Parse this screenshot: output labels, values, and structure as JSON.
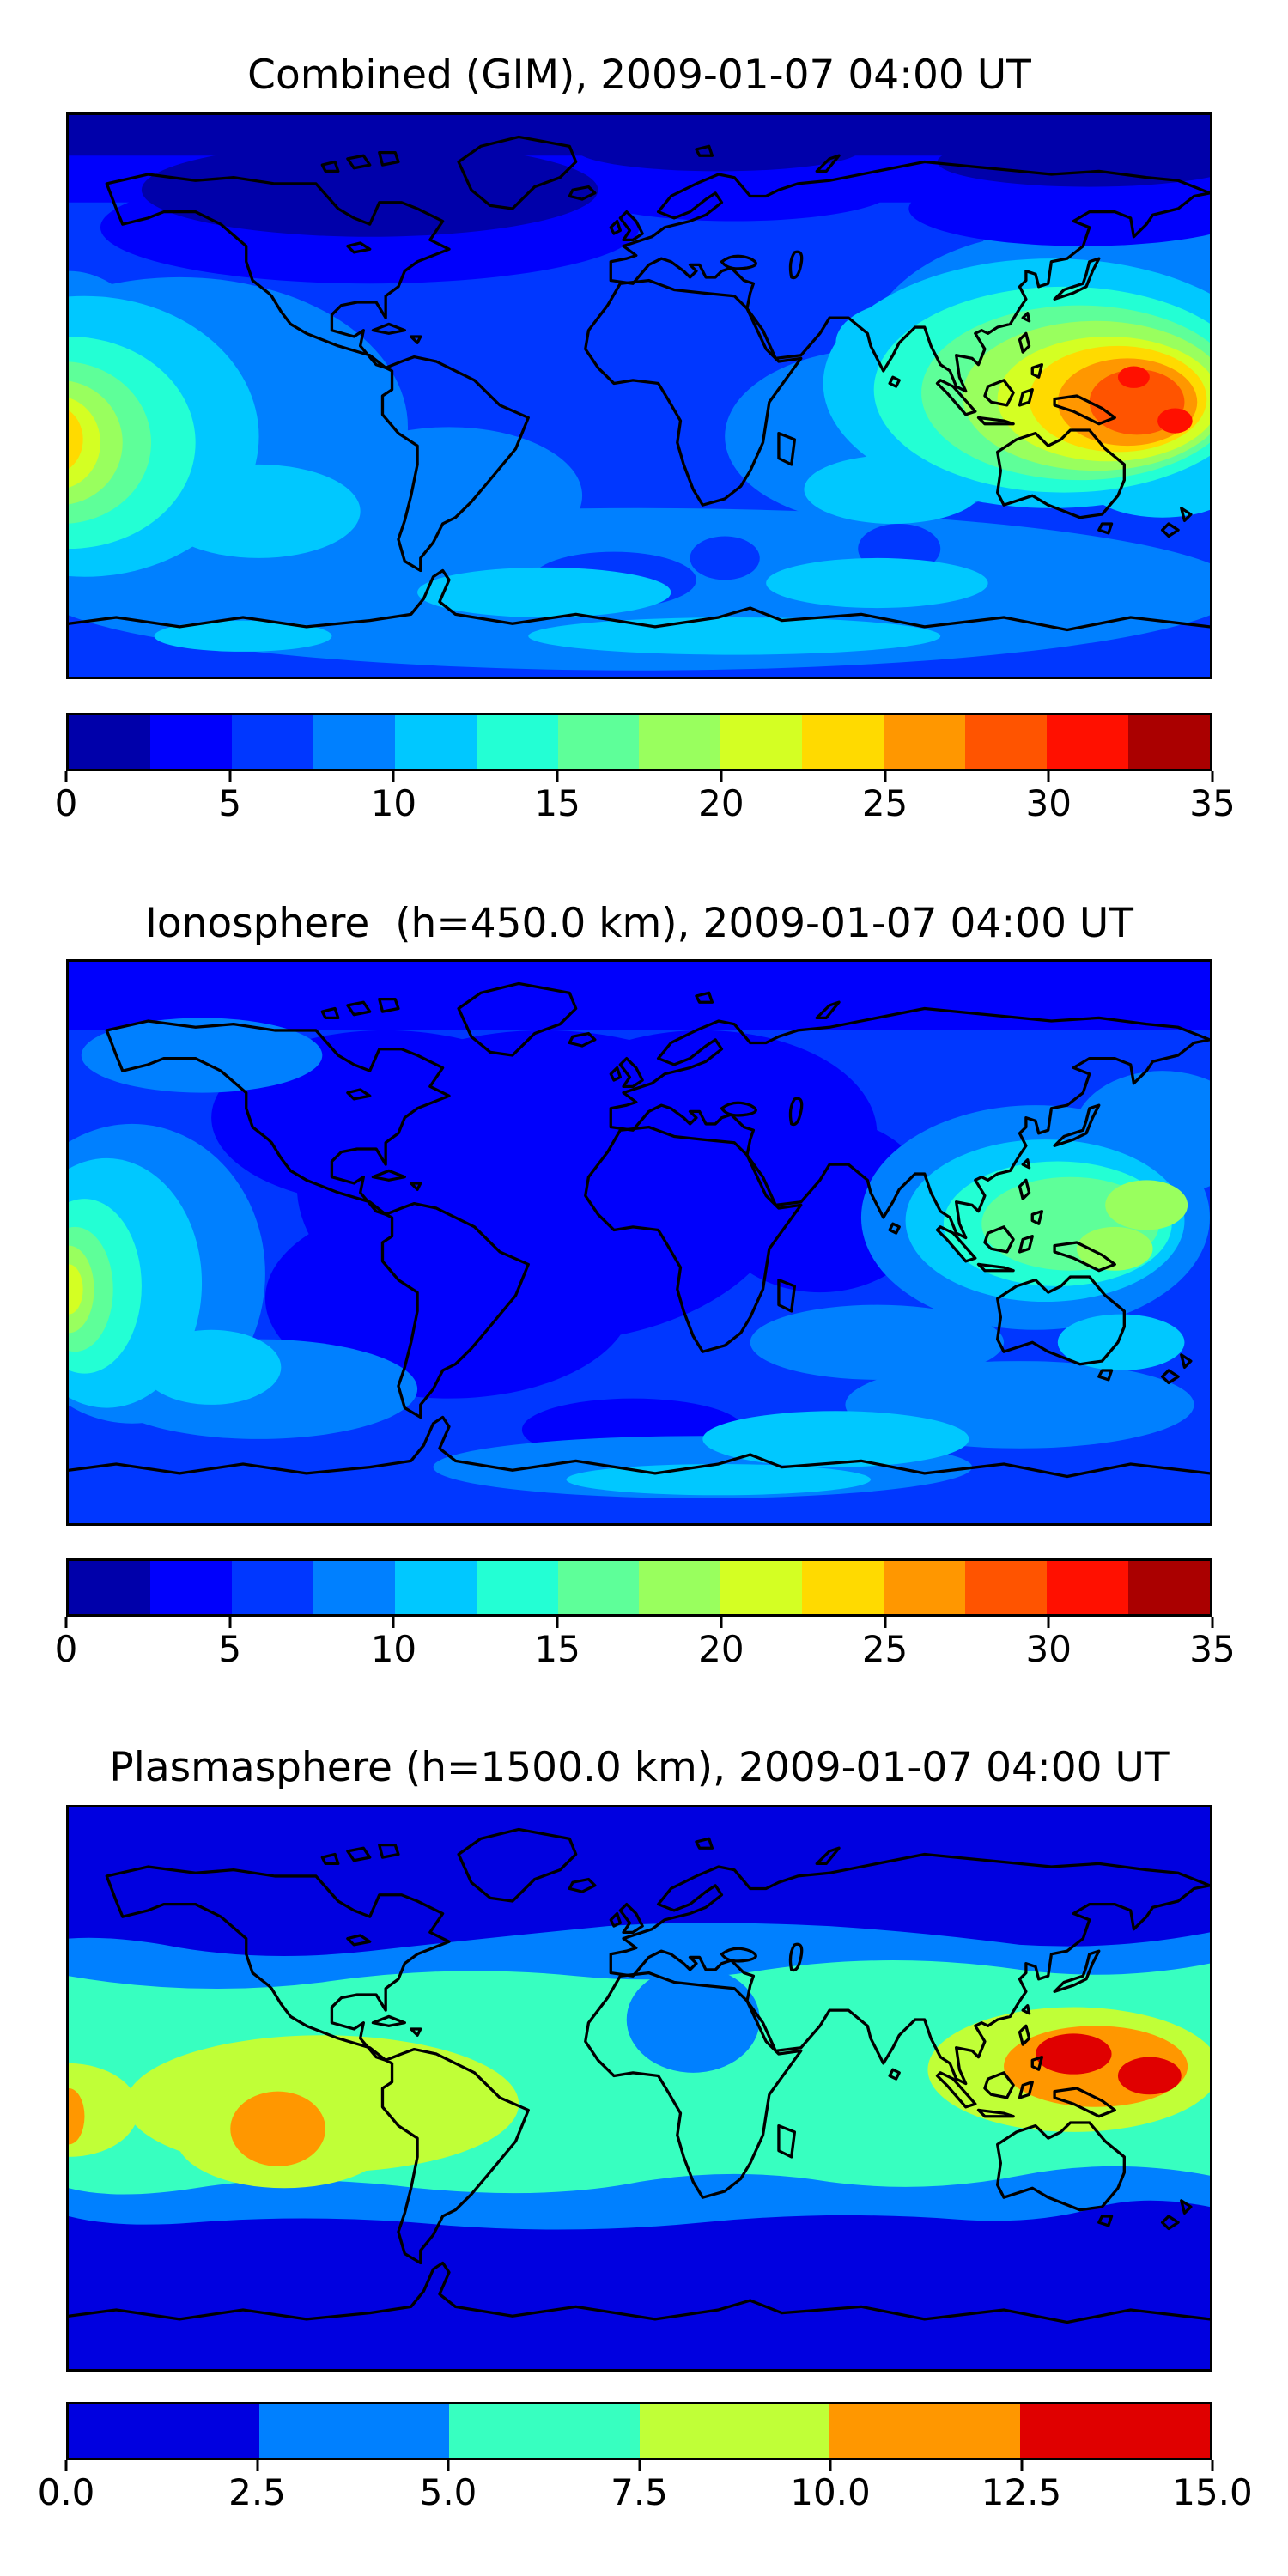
{
  "figure": {
    "background_color": "#ffffff",
    "text_color": "#000000",
    "colormap_name": "jet"
  },
  "panels": [
    {
      "id": "combined",
      "title": "Combined (GIM), 2009-01-07 04:00 UT",
      "colorbar": {
        "min": 0,
        "max": 35,
        "tick_labels": [
          "0",
          "5",
          "10",
          "15",
          "20",
          "25",
          "30",
          "35"
        ],
        "segment_colors": [
          "#0000AA",
          "#0000FC",
          "#0037FF",
          "#0080FF",
          "#00C8FF",
          "#23FFD4",
          "#5EFF99",
          "#99FF5E",
          "#D4FF23",
          "#FFDA00",
          "#FF9700",
          "#FF5400",
          "#FF1000",
          "#AA0000"
        ]
      }
    },
    {
      "id": "ionosphere",
      "title": "Ionosphere  (h=450.0 km), 2009-01-07 04:00 UT",
      "colorbar": {
        "min": 0,
        "max": 35,
        "tick_labels": [
          "0",
          "5",
          "10",
          "15",
          "20",
          "25",
          "30",
          "35"
        ],
        "segment_colors": [
          "#0000AA",
          "#0000FC",
          "#0037FF",
          "#0080FF",
          "#00C8FF",
          "#23FFD4",
          "#5EFF99",
          "#99FF5E",
          "#D4FF23",
          "#FFDA00",
          "#FF9700",
          "#FF5400",
          "#FF1000",
          "#AA0000"
        ]
      }
    },
    {
      "id": "plasmasphere",
      "title": "Plasmasphere (h=1500.0 km), 2009-01-07 04:00 UT",
      "colorbar": {
        "min": 0,
        "max": 15,
        "tick_labels": [
          "0.0",
          "2.5",
          "5.0",
          "7.5",
          "10.0",
          "12.5",
          "15.0"
        ],
        "segment_colors": [
          "#0000E0",
          "#0080FF",
          "#37FFC0",
          "#C0FF37",
          "#FF9700",
          "#E00000"
        ]
      }
    }
  ],
  "chart_data": [
    {
      "type": "heatmap",
      "subtype": "filled-contour-world-map",
      "title": "Combined (GIM), 2009-01-07 04:00 UT",
      "projection": "equirectangular",
      "lon_range": [
        -180,
        180
      ],
      "lat_range": [
        -90,
        90
      ],
      "colormap": "jet",
      "contour_levels": [
        0,
        2.5,
        5,
        7.5,
        10,
        12.5,
        15,
        17.5,
        20,
        22.5,
        25,
        27.5,
        30,
        32.5,
        35
      ],
      "colorbar_ticks": [
        0,
        5,
        10,
        15,
        20,
        25,
        30,
        35
      ],
      "features": [
        {
          "label": "equatorial anomaly over SE Asia / W Pacific",
          "lon": 150,
          "lat": 5,
          "peak_value": 33
        },
        {
          "label": "second red core E of New Guinea",
          "lon": 170,
          "lat": -12,
          "peak_value": 33
        },
        {
          "label": "anomaly wrapped at left edge (central Pacific)",
          "lon": -180,
          "lat": -15,
          "peak_value": 29
        },
        {
          "label": "dark minimum across high northern latitudes",
          "lon": -90,
          "lat": 68,
          "value": 1.5
        },
        {
          "label": "background northern mid-latitudes",
          "value": 6
        },
        {
          "label": "southern ocean band",
          "value": 9
        }
      ]
    },
    {
      "type": "heatmap",
      "subtype": "filled-contour-world-map",
      "title": "Ionosphere  (h=450.0 km), 2009-01-07 04:00 UT",
      "projection": "equirectangular",
      "lon_range": [
        -180,
        180
      ],
      "lat_range": [
        -90,
        90
      ],
      "colormap": "jet",
      "contour_levels": [
        0,
        2.5,
        5,
        7.5,
        10,
        12.5,
        15,
        17.5,
        20,
        22.5,
        25,
        27.5,
        30,
        32.5,
        35
      ],
      "colorbar_ticks": [
        0,
        5,
        10,
        15,
        20,
        25,
        30,
        35
      ],
      "features": [
        {
          "label": "enhancement over SE Asia / W Pacific",
          "lon": 150,
          "lat": 0,
          "peak_value": 21
        },
        {
          "label": "enhancement wrapped at left edge (central Pacific)",
          "lon": -180,
          "lat": -16,
          "peak_value": 22
        },
        {
          "label": "broad minimum over Atlantic / Africa / S America",
          "lon": -30,
          "lat": 10,
          "value": 3
        },
        {
          "label": "background mid-latitudes",
          "value": 6
        }
      ]
    },
    {
      "type": "heatmap",
      "subtype": "filled-contour-world-map",
      "title": "Plasmasphere (h=1500.0 km), 2009-01-07 04:00 UT",
      "projection": "equirectangular",
      "lon_range": [
        -180,
        180
      ],
      "lat_range": [
        -90,
        90
      ],
      "colormap": "jet",
      "contour_levels": [
        0,
        2.5,
        5,
        7.5,
        10,
        12.5,
        15
      ],
      "colorbar_ticks": [
        0,
        2.5,
        5,
        7.5,
        10,
        12.5,
        15
      ],
      "features": [
        {
          "label": "red core over Philippines",
          "lon": 137,
          "lat": 11,
          "peak_value": 14.5
        },
        {
          "label": "red core E of New Guinea",
          "lon": 161,
          "lat": 4,
          "peak_value": 14
        },
        {
          "label": "orange enhancement SE Pacific",
          "lon": -114,
          "lat": -13,
          "value": 11.5
        },
        {
          "label": "yellow-green equatorial band W hemisphere",
          "lon": -100,
          "lat": -5,
          "value": 9
        },
        {
          "label": "blue depletion over Sahara",
          "lon": 17,
          "lat": 22,
          "value": 4
        },
        {
          "label": "dark-blue polar bands N of 50N and S of 40S",
          "value": 1.5
        }
      ]
    }
  ]
}
